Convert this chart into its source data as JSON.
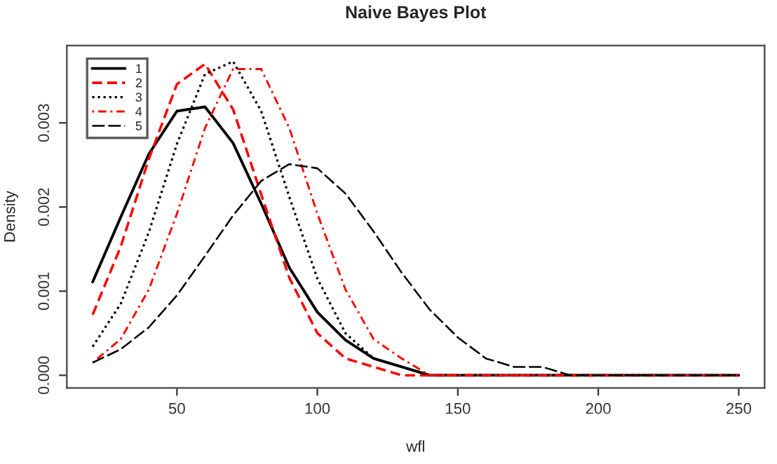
{
  "chart_data": {
    "type": "line",
    "title": "Naive Bayes Plot",
    "xlabel": "wfl",
    "ylabel": "Density",
    "x": [
      20,
      30,
      40,
      50,
      60,
      70,
      80,
      90,
      100,
      110,
      120,
      130,
      140,
      150,
      160,
      170,
      180,
      190,
      200,
      210,
      220,
      230,
      240,
      250
    ],
    "series": [
      {
        "name": "1",
        "color": "#000000",
        "line_style": "solid",
        "values": [
          0.00111,
          0.00188,
          0.00263,
          0.00314,
          0.00319,
          0.00276,
          0.00204,
          0.00128,
          0.00075,
          0.00042,
          0.0002,
          0.0001,
          0,
          0,
          0,
          0,
          0,
          0,
          0,
          0,
          0,
          0,
          0,
          0
        ]
      },
      {
        "name": "2",
        "color": "#ff0000",
        "line_style": "dashed",
        "values": [
          0.00072,
          0.00153,
          0.00257,
          0.00346,
          0.0037,
          0.00316,
          0.00215,
          0.00116,
          0.0005,
          0.0002,
          0.0001,
          0,
          0,
          0,
          0,
          0,
          0,
          0,
          0,
          0,
          0,
          0,
          0,
          0
        ]
      },
      {
        "name": "3",
        "color": "#000000",
        "line_style": "dotted",
        "values": [
          0.00034,
          0.00085,
          0.0017,
          0.00275,
          0.00358,
          0.00373,
          0.00314,
          0.00212,
          0.00115,
          0.0005,
          0.0002,
          0.0001,
          0,
          0,
          0,
          0,
          0,
          0,
          0,
          0,
          0,
          0,
          0,
          0
        ]
      },
      {
        "name": "4",
        "color": "#ff0000",
        "line_style": "dashdot",
        "values": [
          0.00015,
          0.00043,
          0.00102,
          0.00192,
          0.00294,
          0.00364,
          0.00364,
          0.00294,
          0.00192,
          0.00102,
          0.00043,
          0.0002,
          0,
          0,
          0,
          0,
          0,
          0,
          0,
          0,
          0,
          0,
          0,
          0
        ]
      },
      {
        "name": "5",
        "color": "#000000",
        "line_style": "longdash",
        "values": [
          0.00015,
          0.00031,
          0.00057,
          0.00095,
          0.00142,
          0.0019,
          0.00231,
          0.00251,
          0.00246,
          0.00216,
          0.00171,
          0.00122,
          0.00078,
          0.00045,
          0.0002,
          0.0001,
          0.0001,
          0,
          0,
          0,
          0,
          0,
          0,
          0
        ]
      }
    ],
    "xlim": [
      10.8,
      259.2
    ],
    "ylim": [
      -0.00015,
      0.00392
    ],
    "xticks": [
      50,
      100,
      150,
      200,
      250
    ],
    "yticks": [
      {
        "value": 0,
        "label": "0.000"
      },
      {
        "value": 0.001,
        "label": "0.001"
      },
      {
        "value": 0.002,
        "label": "0.002"
      },
      {
        "value": 0.003,
        "label": "0.003"
      }
    ],
    "grid": false,
    "legend": "top left"
  }
}
